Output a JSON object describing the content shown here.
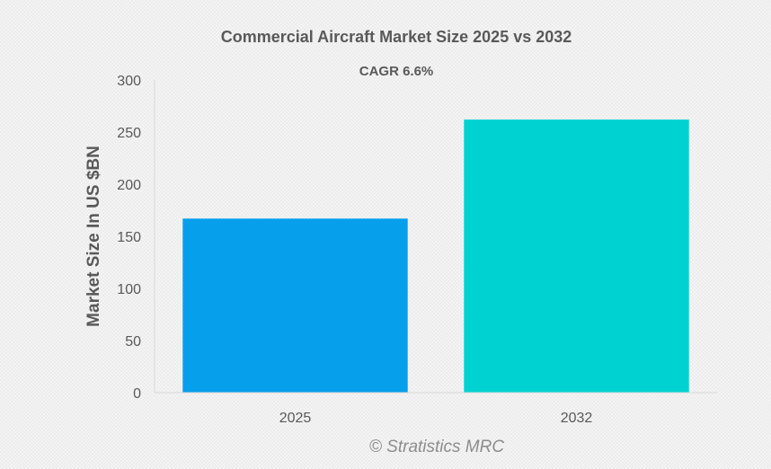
{
  "chart_data": {
    "type": "bar",
    "title": "Commercial Aircraft Market Size 2025 vs 2032",
    "subtitle": "CAGR 6.6%",
    "xlabel": "",
    "ylabel": "Market Size In US $BN",
    "categories": [
      "2025",
      "2032"
    ],
    "values": [
      167,
      262
    ],
    "colors": [
      "#069fec",
      "#00d2d2"
    ],
    "ylim": [
      0,
      300
    ],
    "yticks": [
      0,
      50,
      100,
      150,
      200,
      250,
      300
    ],
    "grid": false,
    "legend": "none"
  },
  "watermark": "© Stratistics MRC",
  "colors": {
    "text": "#595959",
    "axis": "#d9d9d9"
  }
}
